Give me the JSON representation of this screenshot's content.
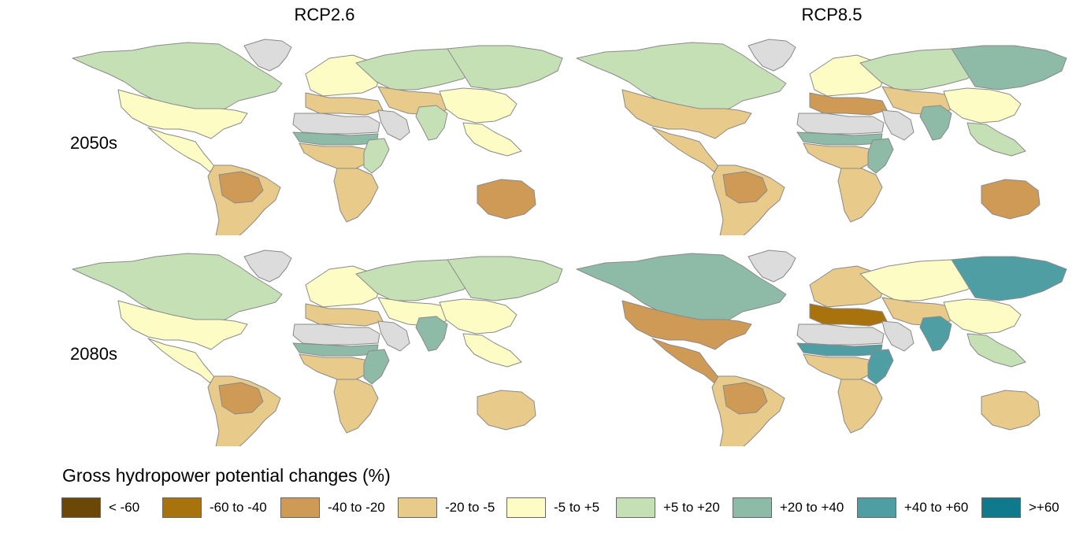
{
  "columns": [
    "RCP2.6",
    "RCP8.5"
  ],
  "rows": [
    "2050s",
    "2080s"
  ],
  "legend": {
    "title": "Gross hydropower potential changes (%)",
    "items": [
      {
        "label": "< -60",
        "color": "#6b4708"
      },
      {
        "label": "-60 to -40",
        "color": "#a8720c"
      },
      {
        "label": "-40 to -20",
        "color": "#cf9a55"
      },
      {
        "label": "-20 to -5",
        "color": "#e8ca8a"
      },
      {
        "label": "-5 to +5",
        "color": "#fdfcc4"
      },
      {
        "label": "+5 to +20",
        "color": "#c6e0b6"
      },
      {
        "label": "+20 to +40",
        "color": "#8ebba7"
      },
      {
        "label": "+40 to +60",
        "color": "#4f9ea4"
      },
      {
        "label": ">+60",
        "color": "#0e7a8c"
      }
    ],
    "no_data_color": "#dcdcdc"
  },
  "panels": [
    {
      "scenario": "RCP2.6",
      "period": "2050s",
      "regions": {
        "northamerica": "+5 to +20",
        "usa": "-5 to +5",
        "centralamerica": "-5 to +5",
        "southamerica": "-20 to -5",
        "amazon": "-40 to -20",
        "greenland": "no data",
        "europe": "-5 to +5",
        "mediterranean": "-20 to -5",
        "russia": "+5 to +20",
        "siberia": "+5 to +20",
        "centralasia": "-20 to -5",
        "middleeast": "no data",
        "sahara": "no data",
        "sahel": "+20 to +40",
        "westafrica": "-20 to -5",
        "eastafrica": "+5 to +20",
        "southernafrica": "-20 to -5",
        "india": "+5 to +20",
        "china": "-5 to +5",
        "seasia": "-5 to +5",
        "australia": "-40 to -20"
      }
    },
    {
      "scenario": "RCP8.5",
      "period": "2050s",
      "regions": {
        "northamerica": "+5 to +20",
        "usa": "-20 to -5",
        "centralamerica": "-20 to -5",
        "southamerica": "-20 to -5",
        "amazon": "-40 to -20",
        "greenland": "no data",
        "europe": "-5 to +5",
        "mediterranean": "-40 to -20",
        "russia": "+5 to +20",
        "siberia": "+20 to +40",
        "centralasia": "-20 to -5",
        "middleeast": "no data",
        "sahara": "no data",
        "sahel": "+20 to +40",
        "westafrica": "-20 to -5",
        "eastafrica": "+20 to +40",
        "southernafrica": "-20 to -5",
        "india": "+20 to +40",
        "china": "-5 to +5",
        "seasia": "+5 to +20",
        "australia": "-40 to -20"
      }
    },
    {
      "scenario": "RCP2.6",
      "period": "2080s",
      "regions": {
        "northamerica": "+5 to +20",
        "usa": "-5 to +5",
        "centralamerica": "-5 to +5",
        "southamerica": "-20 to -5",
        "amazon": "-40 to -20",
        "greenland": "no data",
        "europe": "-5 to +5",
        "mediterranean": "-20 to -5",
        "russia": "+5 to +20",
        "siberia": "+5 to +20",
        "centralasia": "-5 to +5",
        "middleeast": "no data",
        "sahara": "no data",
        "sahel": "+20 to +40",
        "westafrica": "-20 to -5",
        "eastafrica": "+20 to +40",
        "southernafrica": "-20 to -5",
        "india": "+20 to +40",
        "china": "-5 to +5",
        "seasia": "-5 to +5",
        "australia": "-20 to -5"
      }
    },
    {
      "scenario": "RCP8.5",
      "period": "2080s",
      "regions": {
        "northamerica": "+20 to +40",
        "usa": "-40 to -20",
        "centralamerica": "-40 to -20",
        "southamerica": "-20 to -5",
        "amazon": "-40 to -20",
        "greenland": "no data",
        "europe": "-20 to -5",
        "mediterranean": "-60 to -40",
        "russia": "-5 to +5",
        "siberia": "+40 to +60",
        "centralasia": "-20 to -5",
        "middleeast": "no data",
        "sahara": "no data",
        "sahel": "+40 to +60",
        "westafrica": "-20 to -5",
        "eastafrica": "+40 to +60",
        "southernafrica": "-20 to -5",
        "india": "+40 to +60",
        "china": "-5 to +5",
        "seasia": "+5 to +20",
        "australia": "-20 to -5"
      }
    }
  ]
}
